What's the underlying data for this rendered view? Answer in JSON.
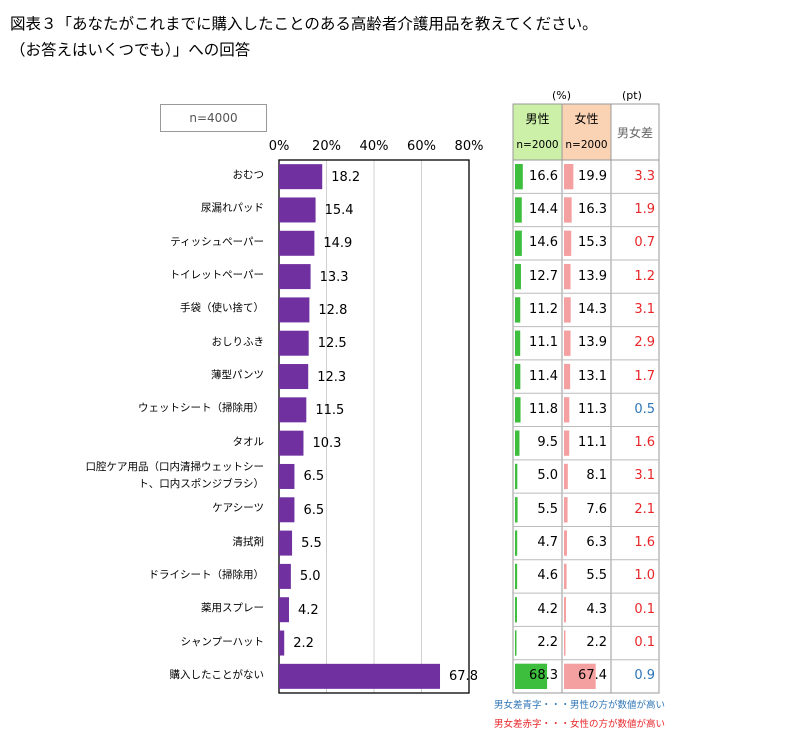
{
  "title": {
    "line1": "図表３「あなたがこれまでに購入したことのある高齢者介護用品を教えてください。",
    "line2": "（お答えはいくつでも）」への回答"
  },
  "sample_label": "n=4000",
  "table": {
    "unit_pct": "(%)",
    "unit_pt": "(pt)",
    "male_header": "男性",
    "female_header": "女性",
    "male_n": "n=2000",
    "female_n": "n=2000",
    "diff_header": "男女差",
    "rows": [
      {
        "male": "16.6",
        "female": "19.9",
        "diff": "3.3",
        "side": "female"
      },
      {
        "male": "14.4",
        "female": "16.3",
        "diff": "1.9",
        "side": "female"
      },
      {
        "male": "14.6",
        "female": "15.3",
        "diff": "0.7",
        "side": "female"
      },
      {
        "male": "12.7",
        "female": "13.9",
        "diff": "1.2",
        "side": "female"
      },
      {
        "male": "11.2",
        "female": "14.3",
        "diff": "3.1",
        "side": "female"
      },
      {
        "male": "11.1",
        "female": "13.9",
        "diff": "2.9",
        "side": "female"
      },
      {
        "male": "11.4",
        "female": "13.1",
        "diff": "1.7",
        "side": "female"
      },
      {
        "male": "11.8",
        "female": "11.3",
        "diff": "0.5",
        "side": "male"
      },
      {
        "male": "9.5",
        "female": "11.1",
        "diff": "1.6",
        "side": "female"
      },
      {
        "male": "5.0",
        "female": "8.1",
        "diff": "3.1",
        "side": "female"
      },
      {
        "male": "5.5",
        "female": "7.6",
        "diff": "2.1",
        "side": "female"
      },
      {
        "male": "4.7",
        "female": "6.3",
        "diff": "1.6",
        "side": "female"
      },
      {
        "male": "4.6",
        "female": "5.5",
        "diff": "1.0",
        "side": "female"
      },
      {
        "male": "4.2",
        "female": "4.3",
        "diff": "0.1",
        "side": "female"
      },
      {
        "male": "2.2",
        "female": "2.2",
        "diff": "0.1",
        "side": "female"
      },
      {
        "male": "68.3",
        "female": "67.4",
        "diff": "0.9",
        "side": "male"
      }
    ]
  },
  "legend": {
    "blue_note": "男女差青字・・・男性の方が数値が高い",
    "red_note": "男女差赤字・・・女性の方が数値が高い"
  },
  "colors": {
    "bar": "#7030A0",
    "male_bar": "#3DBE3D",
    "female_bar": "#F4A0A0",
    "male_header_bg": "#CCF0A8",
    "female_header_bg": "#FAD2B4",
    "diff_red": "#E8262A",
    "diff_blue": "#2E75B6"
  },
  "chart_data": {
    "type": "bar",
    "orientation": "horizontal",
    "categories": [
      "おむつ",
      "尿漏れパッド",
      "ティッシュペーパー",
      "トイレットペーパー",
      "手袋（使い捨て）",
      "おしりふき",
      "薄型パンツ",
      "ウェットシート（掃除用）",
      "タオル",
      "口腔ケア用品（口内清掃ウェットシート、口内スポンジブラシ）",
      "ケアシーツ",
      "清拭剤",
      "ドライシート（掃除用）",
      "薬用スプレー",
      "シャンプーハット",
      "購入したことがない"
    ],
    "category_display": [
      [
        "おむつ"
      ],
      [
        "尿漏れパッド"
      ],
      [
        "ティッシュペーパー"
      ],
      [
        "トイレットペーパー"
      ],
      [
        "手袋（使い捨て）"
      ],
      [
        "おしりふき"
      ],
      [
        "薄型パンツ"
      ],
      [
        "ウェットシート（掃除用）"
      ],
      [
        "タオル"
      ],
      [
        "口腔ケア用品（口内清掃ウェットシー",
        "ト、口内スポンジブラシ）"
      ],
      [
        "ケアシーツ"
      ],
      [
        "清拭剤"
      ],
      [
        "ドライシート（掃除用）"
      ],
      [
        "薬用スプレー"
      ],
      [
        "シャンプーハット"
      ],
      [
        "購入したことがない"
      ]
    ],
    "values": [
      18.2,
      15.4,
      14.9,
      13.3,
      12.8,
      12.5,
      12.3,
      11.5,
      10.3,
      6.5,
      6.5,
      5.5,
      5.0,
      4.2,
      2.2,
      67.8
    ],
    "value_labels": [
      "18.2",
      "15.4",
      "14.9",
      "13.3",
      "12.8",
      "12.5",
      "12.3",
      "11.5",
      "10.3",
      "6.5",
      "6.5",
      "5.5",
      "5.0",
      "4.2",
      "2.2",
      "67.8"
    ],
    "xlim": [
      0,
      80
    ],
    "xticks": [
      "0%",
      "20%",
      "40%",
      "60%",
      "80%"
    ],
    "xtick_values": [
      0,
      20,
      40,
      60,
      80
    ],
    "grid": true,
    "title": "",
    "xlabel": "",
    "ylabel": ""
  }
}
